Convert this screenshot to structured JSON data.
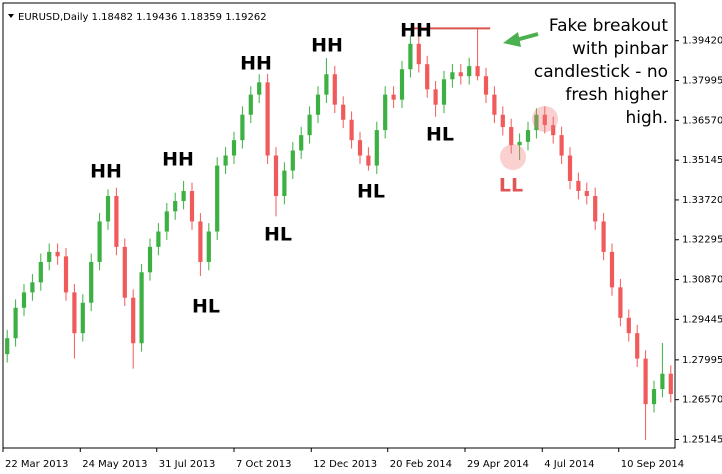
{
  "chart_data": {
    "type": "candlestick",
    "header": "EURUSD,Daily  1.18482 1.19436 1.18359 1.19262",
    "up_color": "#3cb043",
    "down_color": "#f05a5a",
    "grid": false,
    "open": [
      1.282,
      1.2877,
      1.2986,
      1.3041,
      1.3077,
      1.315,
      1.3186,
      1.317,
      1.3041,
      1.2895,
      1.3004,
      1.315,
      1.3295,
      1.3386,
      1.3204,
      1.3022,
      1.2859,
      1.3113,
      1.3204,
      1.3259,
      1.3331,
      1.3368,
      1.3404,
      1.3295,
      1.315,
      1.3259,
      1.3495,
      1.3531,
      1.3586,
      1.3677,
      1.3749,
      1.3793,
      1.3531,
      1.3386,
      1.3477,
      1.3549,
      1.3604,
      1.3677,
      1.3749,
      1.3822,
      1.3713,
      1.3659,
      1.3586,
      1.3531,
      1.3495,
      1.3622,
      1.3749,
      1.3731,
      1.384,
      1.3931,
      1.3858,
      1.3768,
      1.3713,
      1.3804,
      1.3829,
      1.3815,
      1.3851,
      1.3815,
      1.3749,
      1.3677,
      1.3633,
      1.3568,
      1.358,
      1.3622,
      1.3677,
      1.364,
      1.3604,
      1.3531,
      1.344,
      1.3404,
      1.3386,
      1.3295,
      1.3186,
      1.3059,
      1.295,
      1.2895,
      1.2804,
      1.2641,
      1.2695,
      1.275
    ],
    "high": [
      1.2907,
      1.3016,
      1.3071,
      1.3107,
      1.318,
      1.3216,
      1.3216,
      1.32,
      1.3071,
      1.3034,
      1.318,
      1.3325,
      1.341,
      1.3416,
      1.3234,
      1.3052,
      1.3143,
      1.3234,
      1.3289,
      1.3361,
      1.3398,
      1.344,
      1.3434,
      1.3325,
      1.3289,
      1.3525,
      1.3561,
      1.3616,
      1.3707,
      1.3779,
      1.3822,
      1.3823,
      1.3561,
      1.3507,
      1.3579,
      1.3634,
      1.3707,
      1.3779,
      1.388,
      1.3852,
      1.3743,
      1.3689,
      1.3616,
      1.3561,
      1.3652,
      1.3779,
      1.3779,
      1.387,
      1.396,
      1.3961,
      1.3888,
      1.3798,
      1.3834,
      1.3859,
      1.3859,
      1.3881,
      1.3986,
      1.3845,
      1.3779,
      1.3707,
      1.3663,
      1.361,
      1.3652,
      1.37,
      1.3707,
      1.367,
      1.3634,
      1.3561,
      1.347,
      1.3434,
      1.3416,
      1.3325,
      1.3216,
      1.3089,
      1.298,
      1.2925,
      1.2834,
      1.2725,
      1.286,
      1.278
    ],
    "low": [
      1.279,
      1.2847,
      1.2956,
      1.3011,
      1.3047,
      1.312,
      1.314,
      1.3011,
      1.2804,
      1.2865,
      1.2974,
      1.312,
      1.3265,
      1.3174,
      1.2992,
      1.2768,
      1.2829,
      1.3083,
      1.3174,
      1.3229,
      1.3301,
      1.3338,
      1.3265,
      1.31,
      1.312,
      1.3229,
      1.3465,
      1.3501,
      1.3556,
      1.3647,
      1.3719,
      1.3501,
      1.3313,
      1.3356,
      1.3447,
      1.3519,
      1.3574,
      1.3647,
      1.3719,
      1.3683,
      1.3629,
      1.3556,
      1.3501,
      1.3477,
      1.3465,
      1.3592,
      1.3701,
      1.3701,
      1.381,
      1.3828,
      1.3738,
      1.367,
      1.3683,
      1.3774,
      1.3785,
      1.3785,
      1.38,
      1.3719,
      1.3647,
      1.3603,
      1.3538,
      1.3515,
      1.355,
      1.3592,
      1.361,
      1.3574,
      1.3501,
      1.341,
      1.3374,
      1.3356,
      1.3265,
      1.3156,
      1.3029,
      1.292,
      1.2865,
      1.2774,
      1.2513,
      1.2611,
      1.2665,
      1.2647
    ],
    "close": [
      1.2877,
      1.2986,
      1.3041,
      1.3077,
      1.315,
      1.3186,
      1.317,
      1.3041,
      1.2895,
      1.3004,
      1.315,
      1.3295,
      1.3386,
      1.3204,
      1.3022,
      1.2859,
      1.3113,
      1.3204,
      1.3259,
      1.3331,
      1.3368,
      1.3404,
      1.3295,
      1.315,
      1.3259,
      1.3495,
      1.3531,
      1.3586,
      1.3677,
      1.3749,
      1.3793,
      1.3531,
      1.3386,
      1.3477,
      1.3549,
      1.3604,
      1.3677,
      1.3749,
      1.3822,
      1.3713,
      1.3659,
      1.3586,
      1.3531,
      1.3495,
      1.3622,
      1.3749,
      1.3731,
      1.384,
      1.3931,
      1.3858,
      1.3768,
      1.3713,
      1.3804,
      1.3829,
      1.3815,
      1.3851,
      1.3815,
      1.3749,
      1.3677,
      1.3633,
      1.3568,
      1.358,
      1.3622,
      1.3677,
      1.364,
      1.3604,
      1.3531,
      1.344,
      1.3404,
      1.3386,
      1.3295,
      1.3186,
      1.3059,
      1.295,
      1.2895,
      1.2804,
      1.2641,
      1.2695,
      1.275,
      1.2677
    ],
    "xlim": [
      0,
      80
    ],
    "xticks": [
      {
        "value": 0,
        "label": "22 Mar 2013"
      },
      {
        "value": 9.2,
        "label": "24 May 2013"
      },
      {
        "value": 18.3,
        "label": "31 Jul 2013"
      },
      {
        "value": 27.5,
        "label": "7 Oct 2013"
      },
      {
        "value": 36.7,
        "label": "12 Dec 2013"
      },
      {
        "value": 45.8,
        "label": "20 Feb 2014"
      },
      {
        "value": 55,
        "label": "29 Apr 2014"
      },
      {
        "value": 64.2,
        "label": "4 Jul 2014"
      },
      {
        "value": 73.3,
        "label": "10 Sep 2014"
      }
    ],
    "ylim": [
      1.2484,
      1.4077
    ],
    "yticks": [
      {
        "value": 1.3942,
        "label": "1.39420"
      },
      1.37995,
      {
        "value": 1.3657,
        "label": "1.36570"
      },
      1.35145,
      {
        "value": 1.3372,
        "label": "1.33720"
      },
      1.32295,
      {
        "value": 1.3087,
        "label": "1.30870"
      },
      1.29445,
      1.27995,
      {
        "value": 1.2657,
        "label": "1.26570"
      },
      1.25145
    ],
    "annotations": [
      "HH",
      "HH",
      "HH",
      "HH",
      "HH",
      "HL",
      "HL",
      "HL",
      "HL",
      "LL"
    ],
    "note_lines": [
      "Fake breakout",
      "with pinbar",
      "candlestick - no",
      "fresh higher",
      "high."
    ]
  }
}
